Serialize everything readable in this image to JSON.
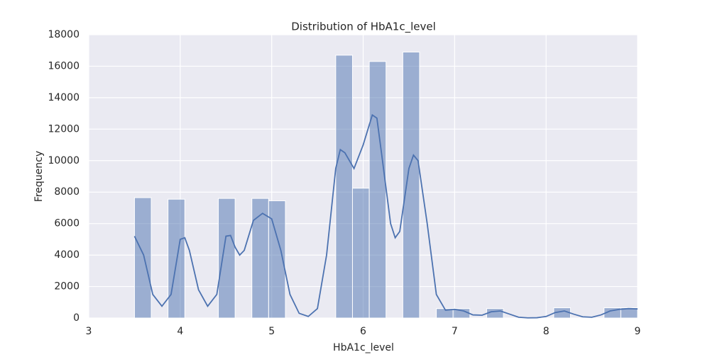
{
  "chart_data": {
    "type": "histogram",
    "title": "Distribution of HbA1c_level",
    "xlabel": "HbA1c_level",
    "ylabel": "Frequency",
    "bins": [
      3.5,
      3.6833,
      3.8667,
      4.05,
      4.2333,
      4.4167,
      4.6,
      4.7833,
      4.9667,
      5.15,
      5.3333,
      5.5167,
      5.7,
      5.8833,
      6.0667,
      6.25,
      6.4333,
      6.6167,
      6.8,
      6.9833,
      7.1667,
      7.35,
      7.5333,
      7.7167,
      7.9,
      8.0833,
      8.2667,
      8.45,
      8.6333,
      8.8167,
      9.0
    ],
    "values": [
      7650,
      0,
      7550,
      0,
      0,
      7600,
      0,
      7600,
      7450,
      0,
      0,
      0,
      16700,
      8250,
      16300,
      0,
      16900,
      0,
      600,
      600,
      0,
      600,
      0,
      0,
      0,
      650,
      0,
      0,
      650,
      650
    ],
    "color": "#4c72b0",
    "kde": {
      "color": "#4c72b0",
      "x": [
        3.5,
        3.6,
        3.7,
        3.8,
        3.9,
        4.0,
        4.05,
        4.1,
        4.2,
        4.3,
        4.4,
        4.5,
        4.55,
        4.6,
        4.65,
        4.7,
        4.8,
        4.9,
        5.0,
        5.1,
        5.2,
        5.3,
        5.4,
        5.5,
        5.6,
        5.7,
        5.75,
        5.8,
        5.9,
        6.0,
        6.1,
        6.15,
        6.2,
        6.3,
        6.35,
        6.4,
        6.5,
        6.55,
        6.6,
        6.7,
        6.8,
        6.9,
        7.0,
        7.1,
        7.2,
        7.3,
        7.4,
        7.5,
        7.6,
        7.7,
        7.8,
        7.9,
        8.0,
        8.1,
        8.2,
        8.3,
        8.4,
        8.5,
        8.6,
        8.7,
        8.8,
        8.9,
        9.0
      ],
      "values": [
        5200,
        4000,
        1500,
        750,
        1500,
        5000,
        5100,
        4300,
        1800,
        750,
        1500,
        5200,
        5250,
        4500,
        4000,
        4300,
        6200,
        6650,
        6300,
        4300,
        1500,
        300,
        100,
        600,
        4000,
        9500,
        10700,
        10500,
        9500,
        11000,
        12900,
        12700,
        10500,
        6000,
        5100,
        5500,
        9500,
        10350,
        10000,
        6000,
        1500,
        500,
        550,
        450,
        200,
        180,
        400,
        450,
        250,
        50,
        10,
        20,
        100,
        350,
        450,
        250,
        80,
        50,
        200,
        450,
        550,
        600,
        580
      ]
    },
    "xlim": [
      3,
      9
    ],
    "ylim": [
      0,
      18000
    ],
    "xticks": [
      3,
      4,
      5,
      6,
      7,
      8,
      9
    ],
    "yticks": [
      0,
      2000,
      4000,
      6000,
      8000,
      10000,
      12000,
      14000,
      16000,
      18000
    ],
    "grid": true
  }
}
